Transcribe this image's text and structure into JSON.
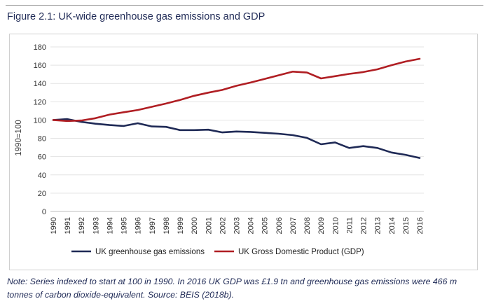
{
  "figure": {
    "title": "Figure 2.1: UK-wide greenhouse gas emissions and GDP",
    "note": "Note: Series indexed to start at 100 in 1990. In 2016 UK GDP was £1.9 tn and greenhouse gas emissions were 466 m tonnes of carbon dioxide-equivalent. Source: BEIS (2018b)."
  },
  "chart_data": {
    "type": "line",
    "title": "",
    "xlabel": "",
    "ylabel": "1990=100",
    "ylim": [
      0,
      180
    ],
    "yticks": [
      0,
      20,
      40,
      60,
      80,
      100,
      120,
      140,
      160,
      180
    ],
    "grid": true,
    "legend_position": "bottom",
    "categories": [
      "1990",
      "1991",
      "1992",
      "1993",
      "1994",
      "1995",
      "1996",
      "1997",
      "1998",
      "1999",
      "2000",
      "2001",
      "2002",
      "2003",
      "2004",
      "2005",
      "2006",
      "2007",
      "2008",
      "2009",
      "2010",
      "2011",
      "2012",
      "2013",
      "2014",
      "2015",
      "2016"
    ],
    "series": [
      {
        "name": "UK greenhouse gas emissions",
        "color": "#1f2a56",
        "values": [
          100,
          101,
          98,
          96,
          94.5,
          93.5,
          96.5,
          93,
          92.5,
          89,
          89,
          89.5,
          86.5,
          87.5,
          87,
          86,
          85,
          83.5,
          80.5,
          73.5,
          75.5,
          69.5,
          71.5,
          69.5,
          64.5,
          62,
          58.5
        ]
      },
      {
        "name": "UK Gross Domestic Product (GDP)",
        "color": "#b01e23",
        "values": [
          100,
          99,
          99.5,
          102,
          106,
          108.5,
          111,
          114.5,
          118,
          122,
          126.5,
          130,
          133,
          137.5,
          141,
          145,
          149,
          153,
          152,
          145.5,
          148,
          150.5,
          152.5,
          155.5,
          160,
          164,
          167
        ]
      }
    ]
  }
}
